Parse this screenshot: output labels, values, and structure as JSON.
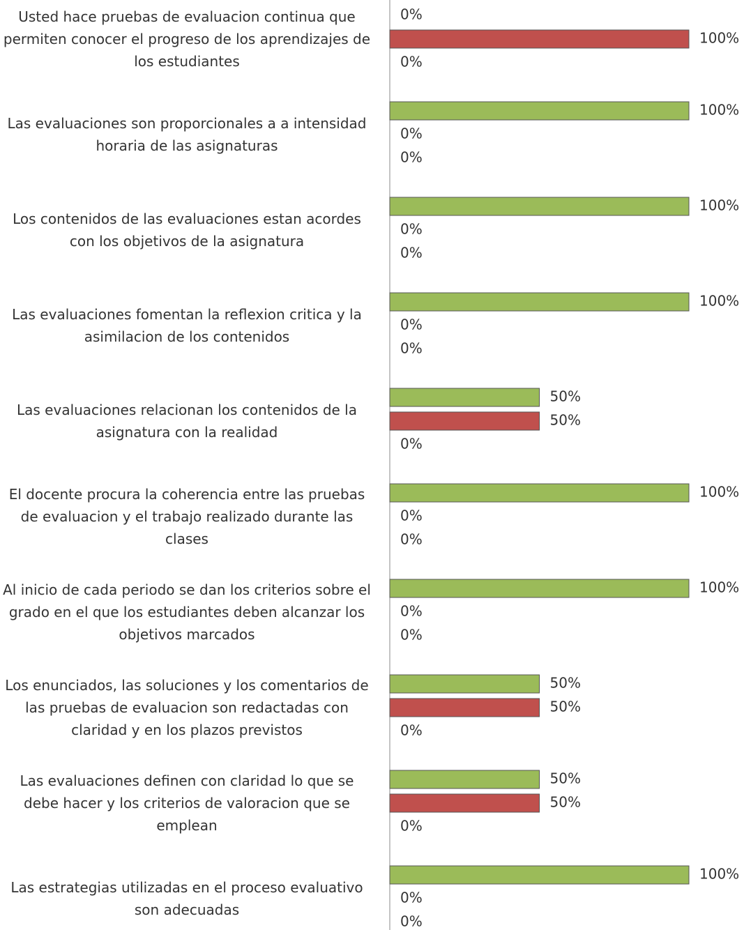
{
  "chart_data": {
    "type": "bar",
    "orientation": "horizontal",
    "categories": [
      "Usted hace pruebas de evaluacion continua que permiten conocer el progreso de los aprendizajes de los estudiantes",
      "Las evaluaciones son proporcionales a a intensidad horaria de las asignaturas",
      "Los contenidos de las evaluaciones estan acordes con los objetivos de la asignatura",
      "Las evaluaciones fomentan la reflexion critica y la asimilacion de los contenidos",
      "Las evaluaciones relacionan los contenidos de la asignatura con la realidad",
      "El docente procura la coherencia entre las pruebas de evaluacion y el trabajo realizado durante las clases",
      "Al inicio de cada periodo se dan los criterios sobre el grado en el que los estudiantes deben alcanzar los objetivos marcados",
      "Los enunciados, las soluciones y los comentarios de las pruebas de evaluacion son redactadas con claridad y en los plazos previstos",
      "Las evaluaciones definen con claridad lo que se debe hacer y los criterios de valoracion que se emplean",
      "Las estrategias utilizadas en el proceso evaluativo son adecuadas"
    ],
    "series": [
      {
        "color": "#9bbb59",
        "values": [
          0,
          100,
          100,
          100,
          50,
          100,
          100,
          50,
          50,
          100
        ],
        "value_labels": [
          "0%",
          "100%",
          "100%",
          "100%",
          "50%",
          "100%",
          "100%",
          "50%",
          "50%",
          "100%"
        ]
      },
      {
        "color": "#c0504d",
        "values": [
          100,
          0,
          0,
          0,
          50,
          0,
          0,
          50,
          50,
          0
        ],
        "value_labels": [
          "100%",
          "0%",
          "0%",
          "0%",
          "50%",
          "0%",
          "0%",
          "50%",
          "50%",
          "0%"
        ]
      },
      {
        "color": "#4f81bd",
        "values": [
          0,
          0,
          0,
          0,
          0,
          0,
          0,
          0,
          0,
          0
        ],
        "value_labels": [
          "0%",
          "0%",
          "0%",
          "0%",
          "0%",
          "0%",
          "0%",
          "0%",
          "0%",
          "0%"
        ]
      }
    ],
    "xlim": [
      0,
      100
    ]
  }
}
